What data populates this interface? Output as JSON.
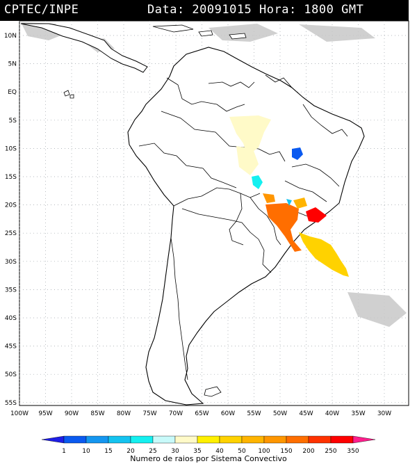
{
  "header": {
    "source": "CPTEC/INPE",
    "datetime": "Data: 20091015 Hora: 1800 GMT"
  },
  "map": {
    "lat_labels": [
      "10N",
      "5N",
      "EQ",
      "5S",
      "10S",
      "15S",
      "20S",
      "25S",
      "30S",
      "35S",
      "40S",
      "45S",
      "50S",
      "55S"
    ],
    "lon_labels": [
      "100W",
      "95W",
      "90W",
      "85W",
      "80W",
      "75W",
      "70W",
      "65W",
      "60W",
      "55W",
      "50W",
      "45W",
      "40W",
      "35W",
      "30W"
    ],
    "grid": "dotted",
    "gridline_color": "#9aa0a6",
    "land_outline_color": "#000000",
    "cloud_color": "#c8c8c8"
  },
  "colorbar": {
    "ticks": [
      "1",
      "10",
      "15",
      "20",
      "25",
      "30",
      "35",
      "40",
      "50",
      "100",
      "150",
      "200",
      "250",
      "350"
    ],
    "colors": [
      "#1e1ee6",
      "#0a5af0",
      "#1496f0",
      "#14c3f0",
      "#14f0f0",
      "#c8fafa",
      "#fffac8",
      "#fff000",
      "#ffd200",
      "#ffb400",
      "#ff9600",
      "#ff6e00",
      "#ff3200",
      "#ff0000",
      "#ff1e8c"
    ],
    "title": "Numero de raios por Sistema Convectivo"
  }
}
